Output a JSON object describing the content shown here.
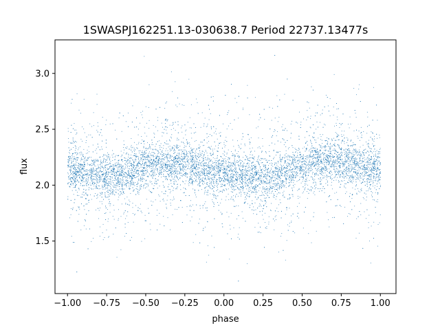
{
  "chart_data": {
    "type": "scatter",
    "title": "1SWASPJ162251.13-030638.7 Period 22737.13477s",
    "xlabel": "phase",
    "ylabel": "flux",
    "xlim": [
      -1.08,
      1.1
    ],
    "ylim": [
      1.03,
      3.3
    ],
    "x_ticks": [
      -1.0,
      -0.75,
      -0.5,
      -0.25,
      0.0,
      0.25,
      0.5,
      0.75,
      1.0
    ],
    "x_tick_labels": [
      "−1.00",
      "−0.75",
      "−0.50",
      "−0.25",
      "0.00",
      "0.25",
      "0.50",
      "0.75",
      "1.00"
    ],
    "y_ticks": [
      1.5,
      2.0,
      2.5,
      3.0
    ],
    "y_tick_labels": [
      "1.5",
      "2.0",
      "2.5",
      "3.0"
    ],
    "point_color": "#1f77b4",
    "grid": false,
    "legend": "none",
    "series": [
      {
        "phase": [
          -1.0,
          -0.9,
          -0.8,
          -0.7,
          -0.6,
          -0.5,
          -0.4,
          -0.3,
          -0.2,
          -0.1,
          0.0,
          0.1,
          0.2,
          0.3,
          0.4,
          0.5,
          0.6,
          0.7,
          0.8,
          0.9,
          1.0
        ],
        "median_flux": [
          2.15,
          2.12,
          2.09,
          2.08,
          2.12,
          2.17,
          2.2,
          2.2,
          2.17,
          2.13,
          2.1,
          2.08,
          2.07,
          2.08,
          2.12,
          2.16,
          2.2,
          2.22,
          2.2,
          2.17,
          2.15
        ],
        "core_scatter": 0.09,
        "wing_scatter": 0.3,
        "flux_min": 1.13,
        "flux_max": 3.2
      }
    ]
  }
}
